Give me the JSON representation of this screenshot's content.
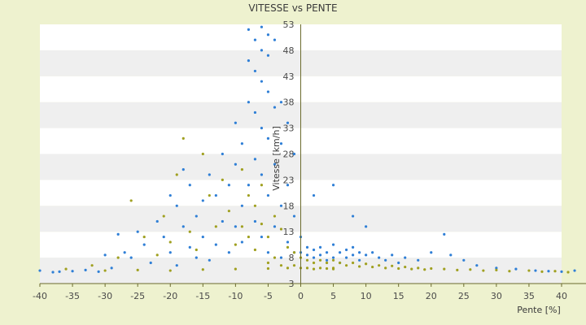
{
  "chart_data": {
    "type": "scatter",
    "title": "VITESSE vs PENTE",
    "xlabel": "Pente [%]",
    "ylabel": "Vitesse [km/h]",
    "xlim": [
      -40,
      40
    ],
    "ylim": [
      3,
      53
    ],
    "x_ticks": [
      -40,
      -35,
      -30,
      -25,
      -20,
      -15,
      -10,
      -5,
      0,
      5,
      10,
      15,
      20,
      25,
      30,
      35,
      40
    ],
    "y_ticks": [
      3,
      8,
      13,
      18,
      23,
      28,
      33,
      38,
      43,
      48,
      53
    ],
    "grid": true,
    "legend": "none",
    "colors": {
      "background": "#eef2cf",
      "plot_band_light": "#ffffff",
      "plot_band_dark": "#efefef",
      "axis": "#6b6b2e",
      "series_a": "#2f7fd6",
      "series_b": "#a0a020"
    },
    "series": [
      {
        "color": "#2f7fd6",
        "note_points_sampled": "approximate representative points",
        "points": [
          [
            -40,
            5.5
          ],
          [
            -38,
            5.2
          ],
          [
            -37,
            5.3
          ],
          [
            -35,
            5.4
          ],
          [
            -33,
            5.6
          ],
          [
            -31,
            5.3
          ],
          [
            -30,
            8.5
          ],
          [
            -29,
            6.0
          ],
          [
            -28,
            12.5
          ],
          [
            -27,
            9.0
          ],
          [
            -26,
            8.0
          ],
          [
            -25,
            13.0
          ],
          [
            -24,
            10.5
          ],
          [
            -23,
            7.0
          ],
          [
            -22,
            15.0
          ],
          [
            -21,
            12.0
          ],
          [
            -20,
            20.0
          ],
          [
            -20,
            9.0
          ],
          [
            -19,
            18.0
          ],
          [
            -19,
            6.5
          ],
          [
            -18,
            25.0
          ],
          [
            -18,
            14.0
          ],
          [
            -17,
            10.0
          ],
          [
            -17,
            22.0
          ],
          [
            -16,
            16.0
          ],
          [
            -16,
            8.0
          ],
          [
            -15,
            19.0
          ],
          [
            -15,
            12.0
          ],
          [
            -14,
            24.0
          ],
          [
            -14,
            7.5
          ],
          [
            -13,
            20.0
          ],
          [
            -13,
            10.5
          ],
          [
            -12,
            15.0
          ],
          [
            -12,
            28.0
          ],
          [
            -11,
            9.0
          ],
          [
            -11,
            22.0
          ],
          [
            -10,
            26.0
          ],
          [
            -10,
            14.0
          ],
          [
            -10,
            34.0
          ],
          [
            -9,
            18.0
          ],
          [
            -9,
            30.0
          ],
          [
            -9,
            11.0
          ],
          [
            -8,
            52.0
          ],
          [
            -8,
            46.0
          ],
          [
            -8,
            38.0
          ],
          [
            -8,
            22.0
          ],
          [
            -7,
            50.0
          ],
          [
            -7,
            44.0
          ],
          [
            -7,
            36.0
          ],
          [
            -7,
            27.0
          ],
          [
            -7,
            15.0
          ],
          [
            -6,
            52.5
          ],
          [
            -6,
            48.0
          ],
          [
            -6,
            42.0
          ],
          [
            -6,
            33.0
          ],
          [
            -6,
            24.0
          ],
          [
            -6,
            12.0
          ],
          [
            -5,
            51.0
          ],
          [
            -5,
            47.0
          ],
          [
            -5,
            40.0
          ],
          [
            -5,
            31.0
          ],
          [
            -5,
            20.0
          ],
          [
            -5,
            9.0
          ],
          [
            -4,
            50.0
          ],
          [
            -4,
            37.0
          ],
          [
            -4,
            26.0
          ],
          [
            -4,
            14.0
          ],
          [
            -3,
            38.0
          ],
          [
            -3,
            30.0
          ],
          [
            -3,
            18.0
          ],
          [
            -3,
            8.0
          ],
          [
            -2,
            34.0
          ],
          [
            -2,
            22.0
          ],
          [
            -2,
            11.0
          ],
          [
            -1,
            28.0
          ],
          [
            -1,
            16.0
          ],
          [
            -1,
            9.0
          ],
          [
            0,
            12.0
          ],
          [
            0,
            9.0
          ],
          [
            1,
            10.0
          ],
          [
            1,
            8.5
          ],
          [
            2,
            9.5
          ],
          [
            2,
            8.0
          ],
          [
            3,
            10.0
          ],
          [
            3,
            8.5
          ],
          [
            4,
            9.0
          ],
          [
            4,
            7.5
          ],
          [
            5,
            10.5
          ],
          [
            5,
            8.0
          ],
          [
            6,
            9.0
          ],
          [
            6,
            7.0
          ],
          [
            7,
            9.5
          ],
          [
            7,
            8.0
          ],
          [
            8,
            10.0
          ],
          [
            8,
            8.5
          ],
          [
            9,
            9.0
          ],
          [
            9,
            7.5
          ],
          [
            10,
            8.5
          ],
          [
            10,
            14.0
          ],
          [
            11,
            9.0
          ],
          [
            12,
            8.0
          ],
          [
            13,
            7.5
          ],
          [
            14,
            8.5
          ],
          [
            15,
            7.0
          ],
          [
            16,
            8.0
          ],
          [
            18,
            7.5
          ],
          [
            20,
            9.0
          ],
          [
            22,
            12.5
          ],
          [
            23,
            8.5
          ],
          [
            25,
            7.5
          ],
          [
            27,
            6.5
          ],
          [
            30,
            6.0
          ],
          [
            33,
            5.8
          ],
          [
            36,
            5.5
          ],
          [
            38,
            5.4
          ],
          [
            40,
            5.3
          ],
          [
            42,
            5.5
          ],
          [
            5,
            22.0
          ],
          [
            2,
            20.0
          ],
          [
            8,
            16.0
          ]
        ]
      },
      {
        "color": "#a0a020",
        "note_points_sampled": "approximate representative points",
        "points": [
          [
            -36,
            5.8
          ],
          [
            -32,
            6.5
          ],
          [
            -28,
            8.0
          ],
          [
            -26,
            19.0
          ],
          [
            -24,
            12.0
          ],
          [
            -22,
            8.5
          ],
          [
            -21,
            16.0
          ],
          [
            -20,
            11.0
          ],
          [
            -19,
            24.0
          ],
          [
            -18,
            31.0
          ],
          [
            -17,
            13.0
          ],
          [
            -16,
            9.5
          ],
          [
            -15,
            28.0
          ],
          [
            -14,
            20.0
          ],
          [
            -13,
            14.0
          ],
          [
            -12,
            23.0
          ],
          [
            -11,
            17.0
          ],
          [
            -10,
            10.5
          ],
          [
            -9,
            25.0
          ],
          [
            -9,
            14.0
          ],
          [
            -8,
            20.0
          ],
          [
            -8,
            12.0
          ],
          [
            -7,
            18.0
          ],
          [
            -7,
            9.5
          ],
          [
            -6,
            22.0
          ],
          [
            -6,
            14.5
          ],
          [
            -5,
            12.0
          ],
          [
            -5,
            7.0
          ],
          [
            -4,
            16.0
          ],
          [
            -4,
            8.0
          ],
          [
            -3,
            13.5
          ],
          [
            -3,
            6.5
          ],
          [
            -2,
            10.0
          ],
          [
            -2,
            6.0
          ],
          [
            -1,
            9.0
          ],
          [
            -1,
            6.5
          ],
          [
            0,
            8.0
          ],
          [
            0,
            6.0
          ],
          [
            1,
            7.5
          ],
          [
            1,
            6.0
          ],
          [
            2,
            7.0
          ],
          [
            2,
            5.8
          ],
          [
            3,
            7.5
          ],
          [
            3,
            6.0
          ],
          [
            4,
            7.0
          ],
          [
            4,
            5.9
          ],
          [
            5,
            7.5
          ],
          [
            5,
            6.0
          ],
          [
            6,
            7.0
          ],
          [
            7,
            6.5
          ],
          [
            8,
            7.0
          ],
          [
            9,
            6.3
          ],
          [
            10,
            6.8
          ],
          [
            11,
            6.2
          ],
          [
            12,
            6.5
          ],
          [
            13,
            6.0
          ],
          [
            14,
            6.4
          ],
          [
            15,
            5.9
          ],
          [
            16,
            6.2
          ],
          [
            17,
            5.8
          ],
          [
            18,
            6.0
          ],
          [
            19,
            5.7
          ],
          [
            20,
            5.9
          ],
          [
            22,
            5.8
          ],
          [
            24,
            5.6
          ],
          [
            26,
            5.7
          ],
          [
            28,
            5.5
          ],
          [
            30,
            5.6
          ],
          [
            32,
            5.4
          ],
          [
            35,
            5.5
          ],
          [
            37,
            5.3
          ],
          [
            39,
            5.4
          ],
          [
            41,
            5.2
          ],
          [
            -30,
            5.5
          ],
          [
            -25,
            5.6
          ],
          [
            -20,
            5.5
          ],
          [
            -15,
            5.7
          ],
          [
            -10,
            5.8
          ],
          [
            -5,
            5.9
          ],
          [
            5,
            5.8
          ]
        ]
      }
    ]
  }
}
